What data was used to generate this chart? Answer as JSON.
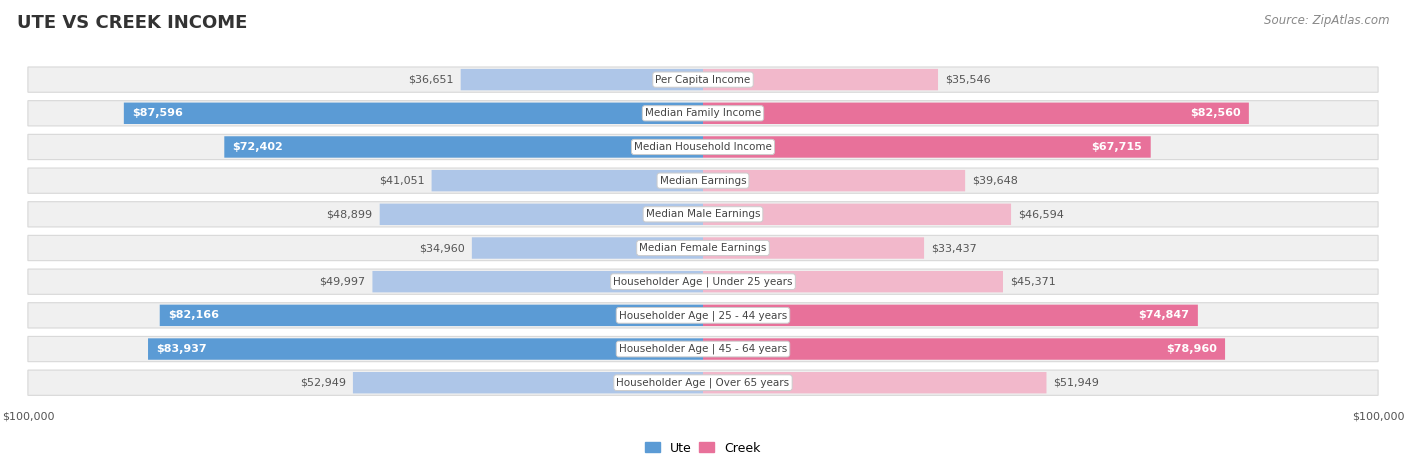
{
  "title": "UTE VS CREEK INCOME",
  "source": "Source: ZipAtlas.com",
  "categories": [
    "Per Capita Income",
    "Median Family Income",
    "Median Household Income",
    "Median Earnings",
    "Median Male Earnings",
    "Median Female Earnings",
    "Householder Age | Under 25 years",
    "Householder Age | 25 - 44 years",
    "Householder Age | 45 - 64 years",
    "Householder Age | Over 65 years"
  ],
  "ute_values": [
    36651,
    87596,
    72402,
    41051,
    48899,
    34960,
    49997,
    82166,
    83937,
    52949
  ],
  "creek_values": [
    35546,
    82560,
    67715,
    39648,
    46594,
    33437,
    45371,
    74847,
    78960,
    51949
  ],
  "ute_labels": [
    "$36,651",
    "$87,596",
    "$72,402",
    "$41,051",
    "$48,899",
    "$34,960",
    "$49,997",
    "$82,166",
    "$83,937",
    "$52,949"
  ],
  "creek_labels": [
    "$35,546",
    "$82,560",
    "$67,715",
    "$39,648",
    "$46,594",
    "$33,437",
    "$45,371",
    "$74,847",
    "$78,960",
    "$51,949"
  ],
  "max_value": 100000,
  "ute_color_dark": "#5b9bd5",
  "ute_color_light": "#aec6e8",
  "creek_color_dark": "#e8719a",
  "creek_color_light": "#f2b8cb",
  "background_color": "#ffffff",
  "row_bg_color": "#f0f0f0",
  "label_color_white": "#ffffff",
  "label_color_dark": "#555555",
  "title_fontsize": 13,
  "source_fontsize": 8.5,
  "bar_label_fontsize": 8,
  "category_fontsize": 7.5,
  "axis_label_fontsize": 8,
  "dark_threshold": 55000,
  "legend_label_ute": "Ute",
  "legend_label_creek": "Creek",
  "x_axis_label": "$100,000"
}
